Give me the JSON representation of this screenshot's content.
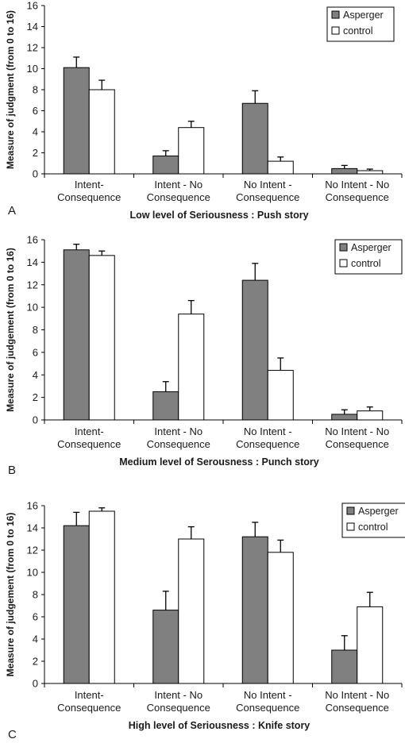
{
  "colors": {
    "asperger": "#808080",
    "control": "#ffffff",
    "axis": "#000000",
    "error": "#000000"
  },
  "chart_data": [
    {
      "type": "bar",
      "panel_label": "A",
      "xlabel": "Low level of Seriousness : Push story",
      "ylabel": "Measure of judgment (from 0 to 16)",
      "ylim": [
        0,
        16
      ],
      "yticks": [
        "0",
        "2",
        "4",
        "6",
        "8",
        "10",
        "12",
        "14",
        "16"
      ],
      "categories": [
        [
          "Intent-",
          "Consequence"
        ],
        [
          "Intent - No",
          "Consequence"
        ],
        [
          "No Intent -",
          "Consequence"
        ],
        [
          "No Intent - No",
          "Consequence"
        ]
      ],
      "legend": [
        "Asperger",
        "control"
      ],
      "legend_position": "top-right",
      "series": [
        {
          "name": "Asperger",
          "values": [
            10.1,
            1.7,
            6.7,
            0.5
          ],
          "errors": [
            1.0,
            0.5,
            1.2,
            0.3
          ]
        },
        {
          "name": "control",
          "values": [
            8.0,
            4.4,
            1.2,
            0.3
          ],
          "errors": [
            0.9,
            0.6,
            0.4,
            0.15
          ]
        }
      ]
    },
    {
      "type": "bar",
      "panel_label": "B",
      "xlabel": "Medium level of Serousness : Punch story",
      "ylabel": "Measure of judgement (from 0 to 16)",
      "ylim": [
        0,
        16
      ],
      "yticks": [
        "0",
        "2",
        "4",
        "6",
        "8",
        "10",
        "12",
        "14",
        "16"
      ],
      "categories": [
        [
          "Intent-",
          "Consequence"
        ],
        [
          "Intent - No",
          "Consequence"
        ],
        [
          "No Intent -",
          "Consequence"
        ],
        [
          "No Intent - No",
          "Consequence"
        ]
      ],
      "legend": [
        "Asperger",
        "control"
      ],
      "legend_position": "top-right",
      "series": [
        {
          "name": "Asperger",
          "values": [
            15.1,
            2.5,
            12.4,
            0.5
          ],
          "errors": [
            0.5,
            0.9,
            1.5,
            0.4
          ]
        },
        {
          "name": "control",
          "values": [
            14.6,
            9.4,
            4.4,
            0.8
          ],
          "errors": [
            0.4,
            1.2,
            1.1,
            0.35
          ]
        }
      ]
    },
    {
      "type": "bar",
      "panel_label": "C",
      "xlabel": "High level of Seriousness : Knife story",
      "ylabel": "Measure of judgement (from 0 to 16)",
      "ylim": [
        0,
        16
      ],
      "yticks": [
        "0",
        "2",
        "4",
        "6",
        "8",
        "10",
        "12",
        "14",
        "16"
      ],
      "categories": [
        [
          "Intent-",
          "Consequence"
        ],
        [
          "Intent - No",
          "Consequence"
        ],
        [
          "No Intent -",
          "Consequence"
        ],
        [
          "No Intent - No",
          "Consequence"
        ]
      ],
      "legend": [
        "Asperger",
        "control"
      ],
      "legend_position": "top-right",
      "series": [
        {
          "name": "Asperger",
          "values": [
            14.2,
            6.6,
            13.2,
            3.0
          ],
          "errors": [
            1.2,
            1.7,
            1.3,
            1.3
          ]
        },
        {
          "name": "control",
          "values": [
            15.5,
            13.0,
            11.8,
            6.9
          ],
          "errors": [
            0.3,
            1.1,
            1.1,
            1.3
          ]
        }
      ]
    }
  ]
}
